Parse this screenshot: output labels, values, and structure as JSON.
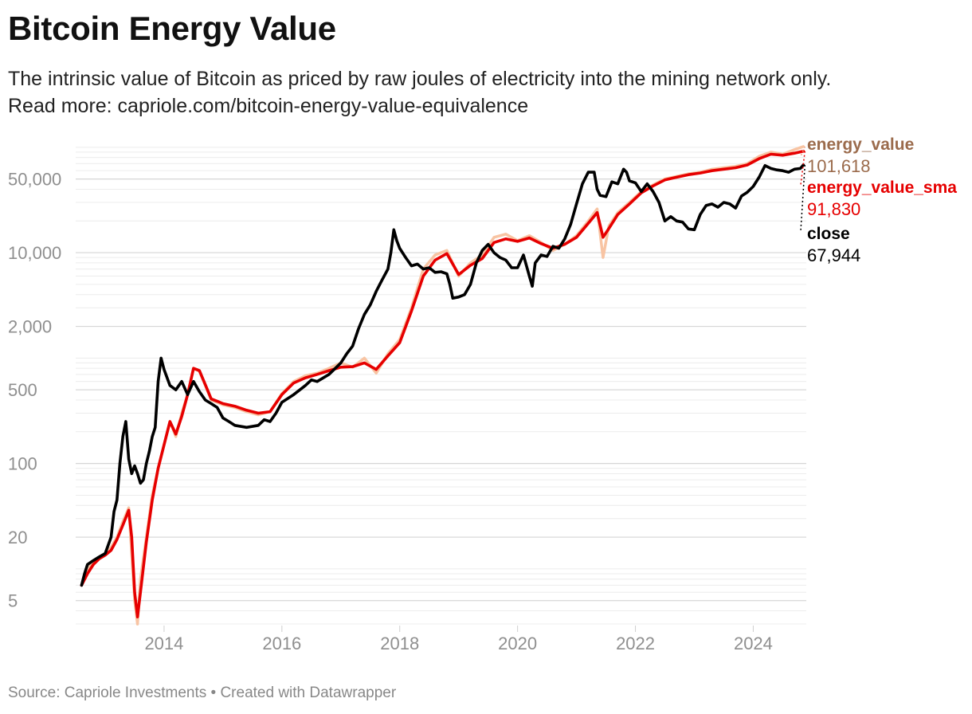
{
  "header": {
    "title": "Bitcoin Energy Value",
    "subtitle_line1": "The intrinsic value of Bitcoin as priced by raw joules of electricity into the mining network only.",
    "subtitle_line2": "Read more: capriole.com/bitcoin-energy-value-equivalence"
  },
  "footer": {
    "source": "Source: Capriole Investments",
    "separator": "•",
    "credit": "Created with Datawrapper"
  },
  "chart_data": {
    "type": "line",
    "title": "Bitcoin Energy Value",
    "yscale": "log",
    "xlim": [
      2012.5,
      2024.9
    ],
    "ylim": [
      2.9,
      125000
    ],
    "y_ticks": [
      {
        "value": 5,
        "label": "5"
      },
      {
        "value": 20,
        "label": "20"
      },
      {
        "value": 100,
        "label": "100"
      },
      {
        "value": 500,
        "label": "500"
      },
      {
        "value": 2000,
        "label": "2,000"
      },
      {
        "value": 10000,
        "label": "10,000"
      },
      {
        "value": 50000,
        "label": "50,000"
      }
    ],
    "x_ticks": [
      {
        "value": 2014,
        "label": "2014"
      },
      {
        "value": 2016,
        "label": "2016"
      },
      {
        "value": 2018,
        "label": "2018"
      },
      {
        "value": 2020,
        "label": "2020"
      },
      {
        "value": 2022,
        "label": "2022"
      },
      {
        "value": 2024,
        "label": "2024"
      }
    ],
    "grid": true,
    "series": [
      {
        "name": "energy_value",
        "color": "#f8c4a3",
        "end_label_color": "#9b6b4c",
        "last_value": 101618,
        "last_label": "101,618",
        "x": [
          2012.6,
          2012.7,
          2012.8,
          2012.9,
          2013.0,
          2013.1,
          2013.2,
          2013.3,
          2013.4,
          2013.5,
          2013.55,
          2013.6,
          2013.7,
          2013.8,
          2013.9,
          2014.0,
          2014.1,
          2014.2,
          2014.3,
          2014.4,
          2014.5,
          2014.6,
          2014.7,
          2014.8,
          2014.9,
          2015.0,
          2015.2,
          2015.4,
          2015.6,
          2015.8,
          2016.0,
          2016.2,
          2016.4,
          2016.6,
          2016.8,
          2017.0,
          2017.2,
          2017.4,
          2017.6,
          2017.8,
          2018.0,
          2018.2,
          2018.4,
          2018.6,
          2018.8,
          2019.0,
          2019.2,
          2019.4,
          2019.6,
          2019.8,
          2020.0,
          2020.2,
          2020.4,
          2020.6,
          2020.8,
          2021.0,
          2021.2,
          2021.35,
          2021.45,
          2021.55,
          2021.7,
          2021.9,
          2022.1,
          2022.3,
          2022.5,
          2022.7,
          2022.9,
          2023.1,
          2023.3,
          2023.5,
          2023.7,
          2023.9,
          2024.1,
          2024.3,
          2024.5,
          2024.7,
          2024.85
        ],
        "values": [
          7,
          10,
          12,
          13,
          14,
          16,
          20,
          28,
          38,
          5,
          3,
          8,
          20,
          50,
          90,
          150,
          250,
          180,
          300,
          450,
          800,
          750,
          550,
          400,
          380,
          360,
          340,
          310,
          290,
          310,
          460,
          600,
          680,
          720,
          800,
          900,
          820,
          1000,
          720,
          1100,
          1500,
          3000,
          7000,
          9500,
          10500,
          6000,
          8000,
          9500,
          14000,
          15000,
          13000,
          14500,
          12500,
          10500,
          12000,
          14500,
          20000,
          26000,
          9000,
          18000,
          24000,
          30000,
          38000,
          44000,
          50000,
          53000,
          56000,
          58000,
          62000,
          64000,
          66000,
          70000,
          82000,
          90000,
          86000,
          95000,
          101618
        ]
      },
      {
        "name": "energy_value_sma",
        "color": "#e60000",
        "end_label_color": "#e60000",
        "last_value": 91830,
        "last_label": "91,830",
        "x": [
          2012.6,
          2012.7,
          2012.8,
          2012.9,
          2013.0,
          2013.1,
          2013.2,
          2013.3,
          2013.4,
          2013.45,
          2013.5,
          2013.55,
          2013.6,
          2013.7,
          2013.8,
          2013.9,
          2014.0,
          2014.1,
          2014.2,
          2014.3,
          2014.4,
          2014.5,
          2014.6,
          2014.7,
          2014.8,
          2014.9,
          2015.0,
          2015.2,
          2015.4,
          2015.6,
          2015.8,
          2016.0,
          2016.2,
          2016.4,
          2016.6,
          2016.8,
          2017.0,
          2017.2,
          2017.4,
          2017.6,
          2017.8,
          2018.0,
          2018.2,
          2018.4,
          2018.6,
          2018.8,
          2019.0,
          2019.2,
          2019.4,
          2019.6,
          2019.8,
          2020.0,
          2020.2,
          2020.4,
          2020.6,
          2020.8,
          2021.0,
          2021.2,
          2021.35,
          2021.45,
          2021.55,
          2021.7,
          2021.9,
          2022.1,
          2022.3,
          2022.5,
          2022.7,
          2022.9,
          2023.1,
          2023.3,
          2023.5,
          2023.7,
          2023.9,
          2024.1,
          2024.3,
          2024.5,
          2024.7,
          2024.85
        ],
        "values": [
          7,
          9,
          11,
          12.5,
          13.5,
          15,
          19,
          26,
          36,
          20,
          6,
          3.5,
          6,
          18,
          45,
          90,
          150,
          250,
          190,
          280,
          450,
          800,
          760,
          560,
          410,
          390,
          370,
          350,
          320,
          300,
          310,
          450,
          580,
          650,
          700,
          760,
          820,
          830,
          900,
          780,
          1050,
          1400,
          2800,
          6000,
          8500,
          9800,
          6200,
          7600,
          8800,
          12500,
          13500,
          12800,
          13800,
          12200,
          11000,
          12000,
          14000,
          19000,
          24000,
          14000,
          17000,
          23000,
          29000,
          37000,
          43000,
          49000,
          52000,
          55000,
          57000,
          60000,
          62000,
          64000,
          68000,
          78000,
          86000,
          84000,
          88000,
          91830
        ]
      },
      {
        "name": "close",
        "color": "#000000",
        "end_label_color": "#000000",
        "last_value": 67944,
        "last_label": "67,944",
        "x": [
          2012.6,
          2012.65,
          2012.7,
          2012.8,
          2012.9,
          2013.0,
          2013.1,
          2013.15,
          2013.2,
          2013.25,
          2013.3,
          2013.35,
          2013.4,
          2013.45,
          2013.5,
          2013.55,
          2013.6,
          2013.65,
          2013.7,
          2013.75,
          2013.8,
          2013.85,
          2013.9,
          2013.95,
          2014.0,
          2014.1,
          2014.2,
          2014.3,
          2014.4,
          2014.5,
          2014.6,
          2014.7,
          2014.8,
          2014.9,
          2015.0,
          2015.1,
          2015.2,
          2015.4,
          2015.6,
          2015.7,
          2015.8,
          2015.9,
          2016.0,
          2016.2,
          2016.4,
          2016.5,
          2016.6,
          2016.8,
          2017.0,
          2017.1,
          2017.2,
          2017.3,
          2017.4,
          2017.5,
          2017.6,
          2017.7,
          2017.8,
          2017.85,
          2017.9,
          2017.95,
          2018.0,
          2018.1,
          2018.2,
          2018.3,
          2018.4,
          2018.5,
          2018.6,
          2018.7,
          2018.8,
          2018.85,
          2018.9,
          2019.0,
          2019.1,
          2019.2,
          2019.3,
          2019.4,
          2019.5,
          2019.6,
          2019.7,
          2019.8,
          2019.9,
          2020.0,
          2020.1,
          2020.2,
          2020.25,
          2020.3,
          2020.4,
          2020.5,
          2020.6,
          2020.7,
          2020.8,
          2020.9,
          2021.0,
          2021.1,
          2021.2,
          2021.3,
          2021.35,
          2021.4,
          2021.5,
          2021.6,
          2021.7,
          2021.8,
          2021.85,
          2021.9,
          2022.0,
          2022.1,
          2022.2,
          2022.3,
          2022.4,
          2022.5,
          2022.6,
          2022.7,
          2022.8,
          2022.9,
          2023.0,
          2023.1,
          2023.2,
          2023.3,
          2023.4,
          2023.5,
          2023.6,
          2023.7,
          2023.8,
          2023.9,
          2024.0,
          2024.1,
          2024.2,
          2024.3,
          2024.4,
          2024.5,
          2024.6,
          2024.7,
          2024.8,
          2024.85
        ],
        "values": [
          7,
          9,
          11,
          12,
          13,
          14,
          20,
          35,
          45,
          100,
          180,
          250,
          110,
          80,
          95,
          80,
          65,
          70,
          100,
          130,
          180,
          220,
          600,
          1000,
          780,
          550,
          500,
          600,
          450,
          600,
          480,
          400,
          370,
          340,
          270,
          250,
          230,
          220,
          230,
          260,
          250,
          300,
          380,
          450,
          550,
          620,
          600,
          700,
          900,
          1100,
          1300,
          1900,
          2600,
          3200,
          4300,
          5500,
          7000,
          10000,
          16500,
          13000,
          11000,
          9000,
          7500,
          7800,
          7000,
          7200,
          6500,
          6600,
          6300,
          5000,
          3700,
          3800,
          4000,
          5000,
          8000,
          10500,
          12000,
          10000,
          9000,
          8500,
          7200,
          7200,
          9500,
          6000,
          4800,
          8000,
          9500,
          9200,
          11500,
          11000,
          13500,
          18500,
          29000,
          45000,
          58000,
          58000,
          40000,
          35000,
          34000,
          47000,
          45000,
          62000,
          58000,
          48000,
          46000,
          38000,
          45000,
          38000,
          30000,
          20000,
          22000,
          20000,
          19500,
          16800,
          16500,
          23000,
          28000,
          29000,
          27000,
          30000,
          29000,
          26500,
          34500,
          37500,
          42500,
          52000,
          67000,
          63000,
          61000,
          60000,
          58000,
          62000,
          63000,
          67944
        ]
      }
    ]
  }
}
